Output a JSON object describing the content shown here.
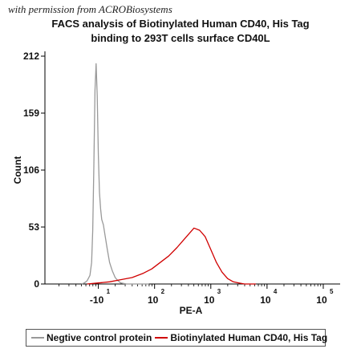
{
  "credit": "with permission from ACROBiosystems",
  "chart_data": {
    "type": "line",
    "title_line1": "FACS analysis of Biotinylated Human CD40, His Tag",
    "title_line2": "binding to 293T cells surface CD40L",
    "xlabel": "PE-A",
    "ylabel": "Count",
    "y_ticks": [
      0,
      53,
      106,
      159,
      212
    ],
    "ylim": [
      0,
      212
    ],
    "x_scale": "biexponential",
    "x_ticks": [
      {
        "base": "-10",
        "exp": "1",
        "pos": 1
      },
      {
        "base": "10",
        "exp": "2",
        "pos": 2
      },
      {
        "base": "10",
        "exp": "3",
        "pos": 3
      },
      {
        "base": "10",
        "exp": "4",
        "pos": 4
      },
      {
        "base": "10",
        "exp": "5",
        "pos": 5
      }
    ],
    "xlim_decades": [
      0.05,
      5.3
    ],
    "series": [
      {
        "name": "Negtive control protein",
        "color": "#999999",
        "points": [
          [
            0.7,
            0
          ],
          [
            0.75,
            1
          ],
          [
            0.8,
            3
          ],
          [
            0.85,
            8
          ],
          [
            0.88,
            20
          ],
          [
            0.9,
            50
          ],
          [
            0.92,
            110
          ],
          [
            0.94,
            180
          ],
          [
            0.96,
            205
          ],
          [
            0.98,
            175
          ],
          [
            1.0,
            120
          ],
          [
            1.02,
            85
          ],
          [
            1.04,
            70
          ],
          [
            1.06,
            60
          ],
          [
            1.09,
            55
          ],
          [
            1.12,
            45
          ],
          [
            1.16,
            32
          ],
          [
            1.2,
            20
          ],
          [
            1.25,
            12
          ],
          [
            1.3,
            6
          ],
          [
            1.35,
            3
          ],
          [
            1.4,
            1
          ],
          [
            1.5,
            0
          ],
          [
            1.9,
            0
          ]
        ]
      },
      {
        "name": "Biotinylated Human CD40, His Tag",
        "color": "#d00000",
        "points": [
          [
            0.8,
            0
          ],
          [
            1.0,
            1
          ],
          [
            1.2,
            2
          ],
          [
            1.4,
            4
          ],
          [
            1.6,
            6
          ],
          [
            1.8,
            10
          ],
          [
            1.95,
            14
          ],
          [
            2.1,
            20
          ],
          [
            2.25,
            26
          ],
          [
            2.4,
            34
          ],
          [
            2.5,
            40
          ],
          [
            2.6,
            46
          ],
          [
            2.7,
            52
          ],
          [
            2.8,
            50
          ],
          [
            2.9,
            44
          ],
          [
            3.0,
            32
          ],
          [
            3.1,
            20
          ],
          [
            3.2,
            11
          ],
          [
            3.3,
            5
          ],
          [
            3.4,
            2
          ],
          [
            3.5,
            1
          ],
          [
            3.6,
            0
          ],
          [
            3.8,
            0
          ]
        ]
      }
    ]
  }
}
